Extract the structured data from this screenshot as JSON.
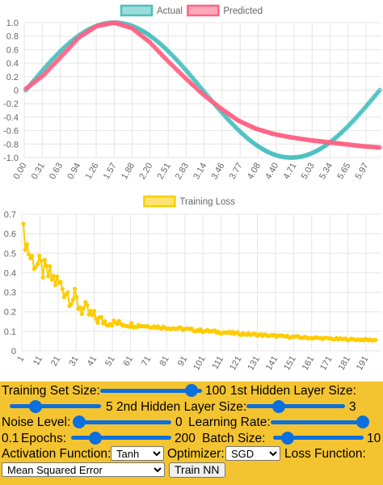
{
  "chart_data": [
    {
      "type": "line",
      "title": "",
      "legend_position": "top-center",
      "x_start": 0,
      "x_step": 0.0314159,
      "n_points": 201,
      "x_tick_labels": [
        "0.00",
        "0.31",
        "0.63",
        "0.94",
        "1.26",
        "1.57",
        "1.88",
        "2.20",
        "2.51",
        "2.83",
        "3.14",
        "3.46",
        "3.77",
        "4.08",
        "4.40",
        "4.71",
        "5.03",
        "5.34",
        "5.65",
        "5.97"
      ],
      "y_ticks": [
        "1.0",
        "0.8",
        "0.6",
        "0.4",
        "0.2",
        "0",
        "-0.2",
        "-0.4",
        "-0.6",
        "-0.8",
        "-1.0"
      ],
      "ylim": [
        -1.0,
        1.0
      ],
      "series": [
        {
          "name": "Actual",
          "color": "#4bc0c0",
          "function": "sin(x)"
        },
        {
          "name": "Predicted",
          "color": "#ff6384",
          "anchors": [
            [
              0.0,
              0.02
            ],
            [
              0.31,
              0.22
            ],
            [
              0.63,
              0.5
            ],
            [
              0.94,
              0.78
            ],
            [
              1.26,
              0.95
            ],
            [
              1.57,
              1.0
            ],
            [
              1.88,
              0.92
            ],
            [
              2.2,
              0.71
            ],
            [
              2.51,
              0.44
            ],
            [
              2.83,
              0.18
            ],
            [
              3.14,
              -0.06
            ],
            [
              3.46,
              -0.27
            ],
            [
              3.77,
              -0.45
            ],
            [
              4.08,
              -0.57
            ],
            [
              4.4,
              -0.65
            ],
            [
              4.71,
              -0.7
            ],
            [
              5.03,
              -0.74
            ],
            [
              5.34,
              -0.77
            ],
            [
              5.65,
              -0.8
            ],
            [
              5.97,
              -0.83
            ],
            [
              6.28,
              -0.85
            ]
          ]
        }
      ]
    },
    {
      "type": "line",
      "title": "",
      "legend_position": "top-center",
      "n_points": 200,
      "x_tick_labels": [
        "1",
        "11",
        "21",
        "31",
        "41",
        "51",
        "61",
        "71",
        "81",
        "91",
        "101",
        "111",
        "121",
        "131",
        "141",
        "151",
        "161",
        "171",
        "181",
        "191"
      ],
      "y_ticks": [
        "0.7",
        "0.6",
        "0.5",
        "0.4",
        "0.3",
        "0.2",
        "0.1",
        "0"
      ],
      "ylim": [
        0,
        0.7
      ],
      "series": [
        {
          "name": "Training Loss",
          "color": "#ffcc00",
          "anchors": [
            [
              1,
              0.6
            ],
            [
              5,
              0.48
            ],
            [
              10,
              0.43
            ],
            [
              15,
              0.39
            ],
            [
              20,
              0.35
            ],
            [
              25,
              0.31
            ],
            [
              30,
              0.26
            ],
            [
              35,
              0.21
            ],
            [
              40,
              0.175
            ],
            [
              45,
              0.155
            ],
            [
              50,
              0.145
            ],
            [
              60,
              0.135
            ],
            [
              80,
              0.12
            ],
            [
              100,
              0.105
            ],
            [
              120,
              0.09
            ],
            [
              140,
              0.078
            ],
            [
              160,
              0.068
            ],
            [
              180,
              0.06
            ],
            [
              200,
              0.055
            ]
          ],
          "noise_band": [
            [
              1,
              0.06
            ],
            [
              30,
              0.06
            ],
            [
              40,
              0.04
            ],
            [
              50,
              0.02
            ],
            [
              70,
              0.008
            ],
            [
              200,
              0.004
            ]
          ]
        }
      ]
    }
  ],
  "controls": {
    "training_set_size_label": "Training Set Size:",
    "training_set_size_value": "100",
    "training_set_size_fraction": 0.95,
    "hidden1_label": "1st Hidden Layer Size:",
    "hidden1_value": "5",
    "hidden1_fraction": 0.25,
    "hidden2_label": "2nd Hidden Layer Size:",
    "hidden2_value": "3",
    "hidden2_fraction": 0.3,
    "noise_label": "Noise Level:",
    "noise_value": "0",
    "noise_fraction": 0.0,
    "learning_rate_label": "Learning Rate:",
    "learning_rate_value": "0.1",
    "learning_rate_fraction": 1.0,
    "epochs_label": "Epochs:",
    "epochs_value": "200",
    "epochs_fraction": 0.2,
    "batch_label": "Batch Size:",
    "batch_value": "10",
    "batch_fraction": 0.1,
    "activation_label": "Activation Function:",
    "activation_selected": "Tanh",
    "optimizer_label": "Optimizer:",
    "optimizer_selected": "SGD",
    "loss_label": "Loss Function:",
    "loss_selected": "Mean Squared Error",
    "train_button": "Train NN"
  }
}
